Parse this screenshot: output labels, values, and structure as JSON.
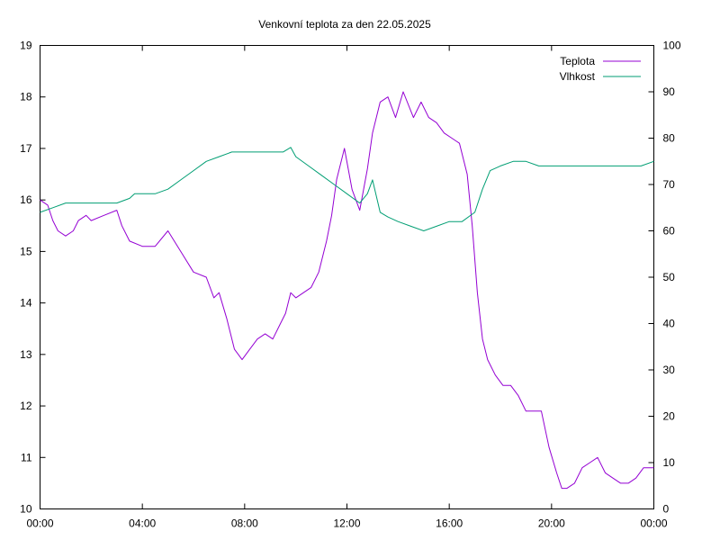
{
  "chart_data": {
    "type": "line",
    "title": "Venkovní teplota za den 22.05.2025",
    "xlabel": "",
    "ylabel": "",
    "y2label": "",
    "x_ticks": [
      "00:00",
      "04:00",
      "08:00",
      "12:00",
      "16:00",
      "20:00",
      "00:00"
    ],
    "xlim_hours": [
      0,
      24
    ],
    "ylim": [
      10,
      19
    ],
    "y_ticks": [
      "10",
      "11",
      "12",
      "13",
      "14",
      "15",
      "16",
      "17",
      "18",
      "19"
    ],
    "y2lim": [
      0,
      100
    ],
    "y2_ticks": [
      "0",
      "10",
      "20",
      "30",
      "40",
      "50",
      "60",
      "70",
      "80",
      "90",
      "100"
    ],
    "grid": false,
    "legend_position": "top-right",
    "series": [
      {
        "name": "Teplota",
        "axis": "left",
        "color": "#9400d3",
        "x": [
          0,
          0.3,
          0.5,
          0.7,
          1.0,
          1.3,
          1.5,
          1.8,
          2.0,
          2.5,
          3.0,
          3.2,
          3.5,
          4.0,
          4.5,
          5.0,
          5.5,
          6.0,
          6.5,
          6.8,
          7.0,
          7.3,
          7.6,
          7.9,
          8.2,
          8.5,
          8.8,
          9.1,
          9.4,
          9.6,
          9.8,
          10.0,
          10.3,
          10.6,
          10.9,
          11.2,
          11.4,
          11.6,
          11.9,
          12.2,
          12.5,
          12.8,
          13.0,
          13.3,
          13.6,
          13.9,
          14.2,
          14.6,
          14.9,
          15.2,
          15.5,
          15.8,
          16.1,
          16.4,
          16.7,
          16.9,
          17.1,
          17.3,
          17.5,
          17.8,
          18.1,
          18.4,
          18.7,
          19.0,
          19.3,
          19.6,
          19.9,
          20.2,
          20.4,
          20.6,
          20.9,
          21.2,
          21.5,
          21.8,
          22.1,
          22.4,
          22.7,
          23.0,
          23.3,
          23.6,
          24.0
        ],
        "y": [
          16.0,
          15.9,
          15.6,
          15.4,
          15.3,
          15.4,
          15.6,
          15.7,
          15.6,
          15.7,
          15.8,
          15.5,
          15.2,
          15.1,
          15.1,
          15.4,
          15.0,
          14.6,
          14.5,
          14.1,
          14.2,
          13.7,
          13.1,
          12.9,
          13.1,
          13.3,
          13.4,
          13.3,
          13.6,
          13.8,
          14.2,
          14.1,
          14.2,
          14.3,
          14.6,
          15.2,
          15.7,
          16.4,
          17.0,
          16.2,
          15.8,
          16.6,
          17.3,
          17.9,
          18.0,
          17.6,
          18.1,
          17.6,
          17.9,
          17.6,
          17.5,
          17.3,
          17.2,
          17.1,
          16.5,
          15.5,
          14.2,
          13.3,
          12.9,
          12.6,
          12.4,
          12.4,
          12.2,
          11.9,
          11.9,
          11.9,
          11.2,
          10.7,
          10.4,
          10.4,
          10.5,
          10.8,
          10.9,
          11.0,
          10.7,
          10.6,
          10.5,
          10.5,
          10.6,
          10.8,
          10.8
        ]
      },
      {
        "name": "Vlhkost",
        "axis": "right",
        "color": "#009e73",
        "x": [
          0,
          0.5,
          1.0,
          1.5,
          2.0,
          2.5,
          3.0,
          3.5,
          3.7,
          4.0,
          4.5,
          5.0,
          5.5,
          6.0,
          6.5,
          7.0,
          7.5,
          8.0,
          8.5,
          9.0,
          9.5,
          9.8,
          10.0,
          10.5,
          11.0,
          11.5,
          12.0,
          12.5,
          12.8,
          13.0,
          13.3,
          13.6,
          14.0,
          14.5,
          15.0,
          15.5,
          16.0,
          16.5,
          17.0,
          17.3,
          17.6,
          18.0,
          18.5,
          19.0,
          19.5,
          20.0,
          20.5,
          21.0,
          21.5,
          22.0,
          22.5,
          23.0,
          23.5,
          24.0
        ],
        "y": [
          64,
          65,
          66,
          66,
          66,
          66,
          66,
          67,
          68,
          68,
          68,
          69,
          71,
          73,
          75,
          76,
          77,
          77,
          77,
          77,
          77,
          78,
          76,
          74,
          72,
          70,
          68,
          66,
          68,
          71,
          64,
          63,
          62,
          61,
          60,
          61,
          62,
          62,
          64,
          69,
          73,
          74,
          75,
          75,
          74,
          74,
          74,
          74,
          74,
          74,
          74,
          74,
          74,
          75
        ]
      }
    ]
  }
}
